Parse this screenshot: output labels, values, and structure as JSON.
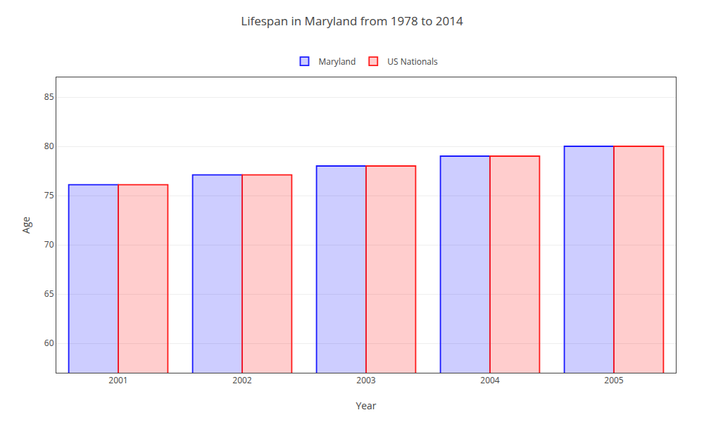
{
  "chart_data": {
    "type": "bar",
    "title": "Lifespan in Maryland from 1978 to 2014",
    "x_label": "Year",
    "y_label": "Age",
    "categories": [
      "2001",
      "2002",
      "2003",
      "2004",
      "2005"
    ],
    "series": [
      {
        "name": "Maryland",
        "color": "#1a1aff",
        "values": [
          76.1,
          77.1,
          78.0,
          79.0,
          80.0
        ]
      },
      {
        "name": "US Nationals",
        "color": "#ff1a1a",
        "values": [
          76.1,
          77.1,
          78.0,
          79.0,
          80.0
        ]
      }
    ],
    "ylim": [
      57,
      87
    ],
    "yticks": [
      60,
      65,
      70,
      75,
      80,
      85
    ],
    "grid": true,
    "legend": "top"
  }
}
